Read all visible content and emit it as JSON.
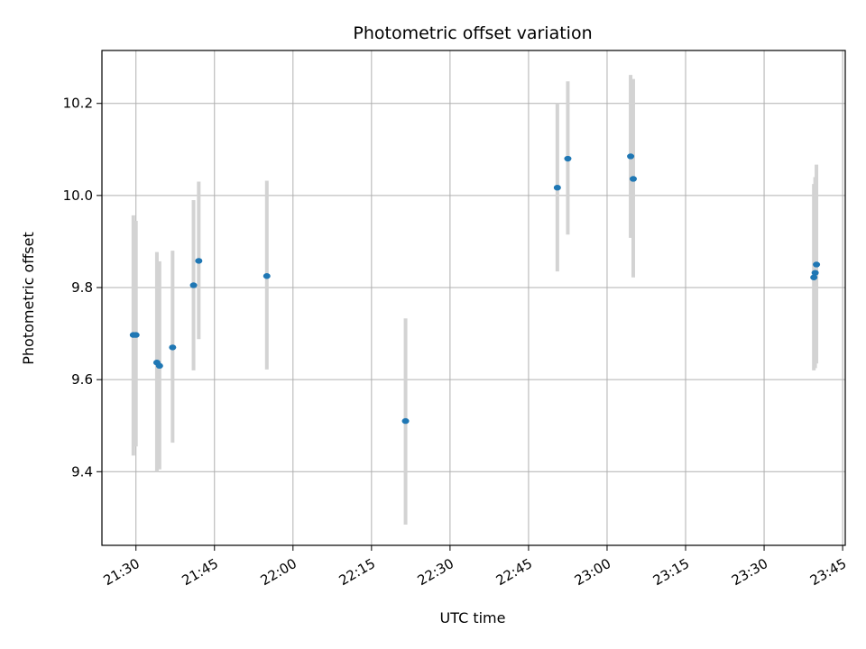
{
  "chart_data": {
    "type": "scatter",
    "title": "Photometric offset variation",
    "xlabel": "UTC time",
    "ylabel": "Photometric offset",
    "x_axis_type": "time",
    "xlim": [
      "21:23:30",
      "23:45:30"
    ],
    "ylim": [
      9.24,
      10.315
    ],
    "x_ticks": [
      "21:30",
      "21:45",
      "22:00",
      "22:15",
      "22:30",
      "22:45",
      "23:00",
      "23:15",
      "23:30",
      "23:45"
    ],
    "y_ticks": [
      9.4,
      9.6,
      9.8,
      10.0,
      10.2
    ],
    "y_tick_labels": [
      "9.4",
      "9.6",
      "9.8",
      "10.0",
      "10.2"
    ],
    "grid": true,
    "point_color": "#1f77b4",
    "errorbar_color": "#d3d3d3",
    "points": [
      {
        "t": "21:29:30",
        "y": 9.697,
        "lo": 9.435,
        "hi": 9.957
      },
      {
        "t": "21:30:00",
        "y": 9.697,
        "lo": 9.455,
        "hi": 9.945
      },
      {
        "t": "21:34:00",
        "y": 9.637,
        "lo": 9.4,
        "hi": 9.877
      },
      {
        "t": "21:34:30",
        "y": 9.63,
        "lo": 9.405,
        "hi": 9.857
      },
      {
        "t": "21:37:00",
        "y": 9.67,
        "lo": 9.463,
        "hi": 9.88
      },
      {
        "t": "21:41:00",
        "y": 9.805,
        "lo": 9.62,
        "hi": 9.99
      },
      {
        "t": "21:42:00",
        "y": 9.858,
        "lo": 9.688,
        "hi": 10.03
      },
      {
        "t": "21:55:00",
        "y": 9.825,
        "lo": 9.622,
        "hi": 10.032
      },
      {
        "t": "22:21:30",
        "y": 9.51,
        "lo": 9.285,
        "hi": 9.733
      },
      {
        "t": "22:50:30",
        "y": 10.017,
        "lo": 9.835,
        "hi": 10.2
      },
      {
        "t": "22:52:30",
        "y": 10.08,
        "lo": 9.915,
        "hi": 10.248
      },
      {
        "t": "23:04:30",
        "y": 10.085,
        "lo": 9.908,
        "hi": 10.262
      },
      {
        "t": "23:05:00",
        "y": 10.036,
        "lo": 9.822,
        "hi": 10.253
      },
      {
        "t": "23:39:30",
        "y": 9.822,
        "lo": 9.62,
        "hi": 10.025
      },
      {
        "t": "23:39:45",
        "y": 9.832,
        "lo": 9.625,
        "hi": 10.04
      },
      {
        "t": "23:40:00",
        "y": 9.85,
        "lo": 9.635,
        "hi": 10.067
      }
    ]
  }
}
